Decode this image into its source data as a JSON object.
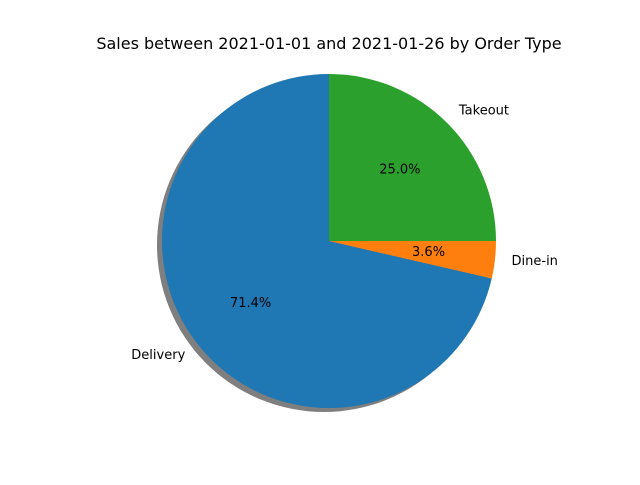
{
  "chart_data": {
    "type": "pie",
    "title": "Sales between 2021-01-01 and 2021-01-26 by Order Type",
    "slices": [
      {
        "label": "Delivery",
        "percent": 71.4,
        "percent_label": "71.4%",
        "color": "#1f77b4"
      },
      {
        "label": "Dine-in",
        "percent": 3.6,
        "percent_label": "3.6%",
        "color": "#ff7f0e"
      },
      {
        "label": "Takeout",
        "percent": 25.0,
        "percent_label": "25.0%",
        "color": "#2ca02c"
      }
    ],
    "start_angle_deg": 90,
    "direction": "counterclockwise",
    "shadow": true,
    "legend": "none"
  }
}
